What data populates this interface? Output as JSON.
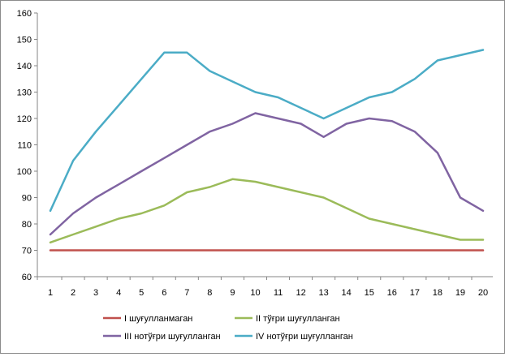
{
  "chart_data": {
    "type": "line",
    "title": "",
    "xlabel": "",
    "ylabel": "",
    "x": [
      1,
      2,
      3,
      4,
      5,
      6,
      7,
      8,
      9,
      10,
      11,
      12,
      13,
      14,
      15,
      16,
      17,
      18,
      19,
      20
    ],
    "ylim": [
      60,
      160
    ],
    "yticks": [
      60,
      70,
      80,
      90,
      100,
      110,
      120,
      130,
      140,
      150,
      160
    ],
    "grid": false,
    "legend_position": "bottom",
    "series": [
      {
        "name": "I шуғулланмаган",
        "color": "#c0504d",
        "values": [
          70,
          70,
          70,
          70,
          70,
          70,
          70,
          70,
          70,
          70,
          70,
          70,
          70,
          70,
          70,
          70,
          70,
          70,
          70,
          70
        ]
      },
      {
        "name": "II тўғри шуғулланган",
        "color": "#9bbb59",
        "values": [
          73,
          76,
          79,
          82,
          84,
          87,
          92,
          94,
          97,
          96,
          94,
          92,
          90,
          86,
          82,
          80,
          78,
          76,
          74,
          74
        ]
      },
      {
        "name": "III нотўғри шуғулланган",
        "color": "#8064a2",
        "values": [
          76,
          84,
          90,
          95,
          100,
          105,
          110,
          115,
          118,
          122,
          120,
          118,
          113,
          118,
          120,
          119,
          115,
          107,
          90,
          85
        ]
      },
      {
        "name": "IV  нотўғри шуғулланган",
        "color": "#4bacc6",
        "values": [
          85,
          104,
          115,
          125,
          135,
          145,
          145,
          138,
          134,
          130,
          128,
          124,
          120,
          124,
          128,
          130,
          135,
          142,
          144,
          146
        ]
      }
    ]
  }
}
